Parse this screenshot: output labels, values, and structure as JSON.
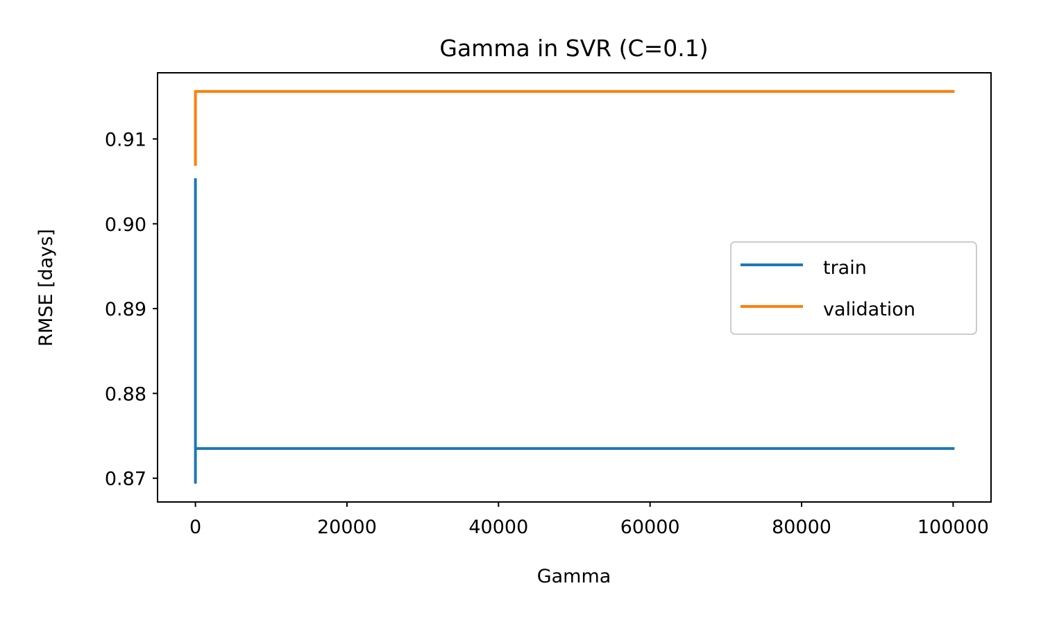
{
  "chart_data": {
    "type": "line",
    "title": "Gamma in SVR (C=0.1)",
    "xlabel": "Gamma",
    "ylabel": "RMSE [days]",
    "xlim": [
      -5000,
      105000
    ],
    "ylim": [
      0.8672,
      0.9178
    ],
    "xticks": [
      0,
      20000,
      40000,
      60000,
      80000,
      100000
    ],
    "xtick_labels": [
      "0",
      "20000",
      "40000",
      "60000",
      "80000",
      "100000"
    ],
    "yticks": [
      0.87,
      0.88,
      0.89,
      0.9,
      0.91
    ],
    "ytick_labels": [
      "0.87",
      "0.88",
      "0.89",
      "0.90",
      "0.91"
    ],
    "grid": false,
    "legend_position": "center-right",
    "x": [
      0.001,
      0.01,
      0.1,
      1,
      10,
      100,
      1000,
      10000,
      100000
    ],
    "series": [
      {
        "name": "train",
        "color": "#1f77b4",
        "values": [
          0.9052,
          0.8695,
          0.8735,
          0.8735,
          0.8735,
          0.8735,
          0.8735,
          0.8735,
          0.8735
        ]
      },
      {
        "name": "validation",
        "color": "#ff7f0e",
        "values": [
          0.907,
          0.9133,
          0.9156,
          0.9156,
          0.9156,
          0.9156,
          0.9156,
          0.9156,
          0.9156
        ]
      }
    ]
  }
}
